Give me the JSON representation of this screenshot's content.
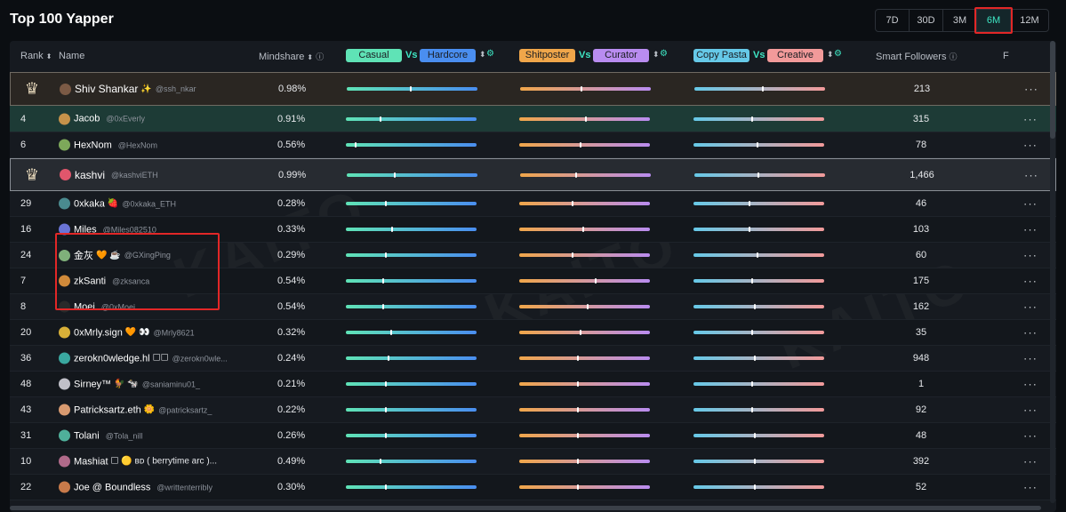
{
  "title": "Top 100 Yapper",
  "periods": [
    {
      "label": "7D",
      "active": false
    },
    {
      "label": "30D",
      "active": false
    },
    {
      "label": "3M",
      "active": false
    },
    {
      "label": "6M",
      "active": true
    },
    {
      "label": "12M",
      "active": false
    }
  ],
  "headers": {
    "rank": "Rank",
    "name": "Name",
    "mindshare": "Mindshare",
    "casual": "Casual",
    "vs": "Vs",
    "hardcore": "Hardcore",
    "shitposter": "Shitposter",
    "curator": "Curator",
    "copy_pasta": "Copy Pasta",
    "creative": "Creative",
    "smart_followers": "Smart Followers",
    "f": "F"
  },
  "watermark": "KAITO",
  "colors": {
    "accent": "#3ee6c4",
    "highlight_box": "#e22727",
    "casual": "#5fe3b6",
    "hardcore": "#4a8ef0",
    "shitposter": "#f0a64a",
    "curator": "#b98cf0",
    "copy_pasta": "#66c9e8",
    "creative": "#f29a9a"
  },
  "rows": [
    {
      "rank": "3",
      "crown": true,
      "name": "Shiv Shankar",
      "handle": "@ssh_nkar",
      "emoji": "✨",
      "mindshare": "0.98%",
      "casual_hardcore": 0.48,
      "shitposter_curator": 0.46,
      "copypasta_creative": 0.52,
      "smart_followers": "213",
      "avatar": "#7b5a45"
    },
    {
      "rank": "4",
      "crown": false,
      "name": "Jacob",
      "handle": "@0xEverly",
      "emoji": "",
      "mindshare": "0.91%",
      "casual_hardcore": 0.26,
      "shitposter_curator": 0.5,
      "copypasta_creative": 0.44,
      "smart_followers": "315",
      "avatar": "#c6924a"
    },
    {
      "rank": "6",
      "crown": false,
      "name": "HexNom",
      "handle": "@HexNom",
      "emoji": "",
      "mindshare": "0.56%",
      "casual_hardcore": 0.07,
      "shitposter_curator": 0.46,
      "copypasta_creative": 0.48,
      "smart_followers": "78",
      "avatar": "#7da85a"
    },
    {
      "rank": "2",
      "crown": true,
      "name": "kashvi",
      "handle": "@kashviETH",
      "emoji": "",
      "mindshare": "0.99%",
      "casual_hardcore": 0.36,
      "shitposter_curator": 0.42,
      "copypasta_creative": 0.48,
      "smart_followers": "1,466",
      "avatar": "#e0566c"
    },
    {
      "rank": "29",
      "crown": false,
      "name": "0xkaka",
      "handle": "@0xkaka_ETH",
      "emoji": "🍓",
      "mindshare": "0.28%",
      "casual_hardcore": 0.3,
      "shitposter_curator": 0.4,
      "copypasta_creative": 0.42,
      "smart_followers": "46",
      "avatar": "#4a8a8f"
    },
    {
      "rank": "16",
      "crown": false,
      "name": "Miles",
      "handle": "@Miles082510",
      "emoji": "",
      "mindshare": "0.33%",
      "casual_hardcore": 0.35,
      "shitposter_curator": 0.48,
      "copypasta_creative": 0.42,
      "smart_followers": "103",
      "avatar": "#6a74d6"
    },
    {
      "rank": "24",
      "crown": false,
      "name": "金灰",
      "handle": "@GXingPing",
      "emoji": "🧡 ☕",
      "mindshare": "0.29%",
      "casual_hardcore": 0.3,
      "shitposter_curator": 0.4,
      "copypasta_creative": 0.48,
      "smart_followers": "60",
      "avatar": "#7fb07a"
    },
    {
      "rank": "7",
      "crown": false,
      "name": "zkSanti",
      "handle": "@zksanca",
      "emoji": "",
      "mindshare": "0.54%",
      "casual_hardcore": 0.28,
      "shitposter_curator": 0.58,
      "copypasta_creative": 0.44,
      "smart_followers": "175",
      "avatar": "#d08a3a"
    },
    {
      "rank": "8",
      "crown": false,
      "name": "Moei",
      "handle": "@0xMoei",
      "emoji": "",
      "mindshare": "0.54%",
      "casual_hardcore": 0.28,
      "shitposter_curator": 0.52,
      "copypasta_creative": 0.46,
      "smart_followers": "162",
      "avatar": "#2a2a2a"
    },
    {
      "rank": "20",
      "crown": false,
      "name": "0xMrly.sign",
      "handle": "@Mrly8621",
      "emoji": "🧡 👀",
      "mindshare": "0.32%",
      "casual_hardcore": 0.34,
      "shitposter_curator": 0.46,
      "copypasta_creative": 0.44,
      "smart_followers": "35",
      "avatar": "#d8b038"
    },
    {
      "rank": "36",
      "crown": false,
      "name": "zerokn0wledge.hl",
      "handle": "@zerokn0wle...",
      "emoji": "☐☐",
      "mindshare": "0.24%",
      "casual_hardcore": 0.32,
      "shitposter_curator": 0.44,
      "copypasta_creative": 0.46,
      "smart_followers": "948",
      "avatar": "#3aa8a0"
    },
    {
      "rank": "48",
      "crown": false,
      "name": "Sirney™",
      "handle": "@saniaminu01_",
      "emoji": "🐓 🐄",
      "mindshare": "0.21%",
      "casual_hardcore": 0.3,
      "shitposter_curator": 0.44,
      "copypasta_creative": 0.44,
      "smart_followers": "1",
      "avatar": "#c0c0c8"
    },
    {
      "rank": "43",
      "crown": false,
      "name": "Patricksartz.eth",
      "handle": "@patricksartz_",
      "emoji": "🌼",
      "mindshare": "0.22%",
      "casual_hardcore": 0.3,
      "shitposter_curator": 0.44,
      "copypasta_creative": 0.44,
      "smart_followers": "92",
      "avatar": "#d89a70"
    },
    {
      "rank": "31",
      "crown": false,
      "name": "Tolani",
      "handle": "@Tola_nill",
      "emoji": "",
      "mindshare": "0.26%",
      "casual_hardcore": 0.3,
      "shitposter_curator": 0.44,
      "copypasta_creative": 0.46,
      "smart_followers": "48",
      "avatar": "#4fb09a"
    },
    {
      "rank": "10",
      "crown": false,
      "name": "Mashiat",
      "handle": "",
      "emoji": "☐ 🟡 ʙᴅ ( berrytime arc )...",
      "mindshare": "0.49%",
      "casual_hardcore": 0.26,
      "shitposter_curator": 0.44,
      "copypasta_creative": 0.46,
      "smart_followers": "392",
      "avatar": "#b06a8a"
    },
    {
      "rank": "22",
      "crown": false,
      "name": "Joe @ Boundless",
      "handle": "@writtenterribly",
      "emoji": "",
      "mindshare": "0.30%",
      "casual_hardcore": 0.3,
      "shitposter_curator": 0.44,
      "copypasta_creative": 0.46,
      "smart_followers": "52",
      "avatar": "#c87a4a"
    }
  ]
}
